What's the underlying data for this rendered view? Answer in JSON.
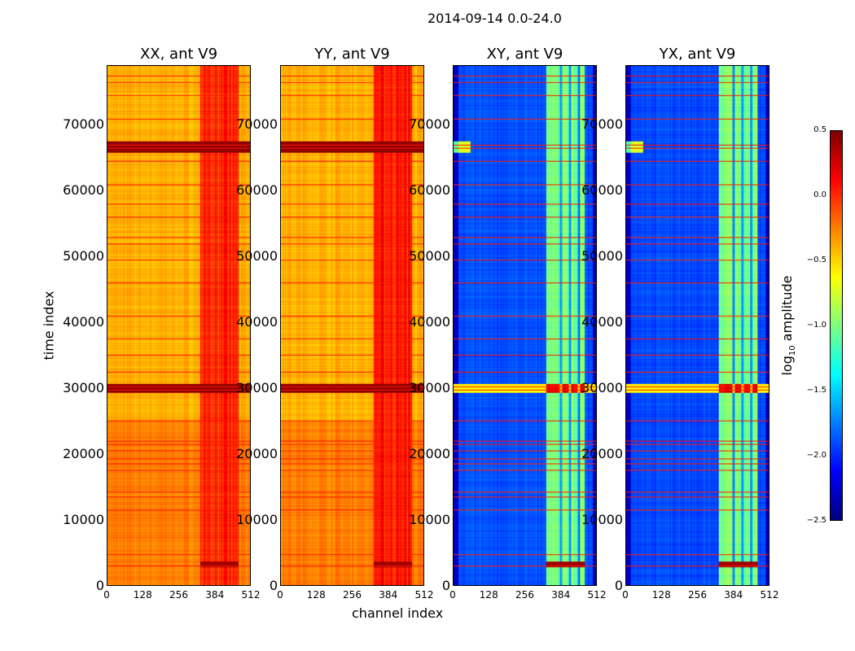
{
  "chart_data": {
    "type": "heatmap",
    "suptitle": "2014-09-14 0.0-24.0",
    "xlabel": "channel index",
    "ylabel": "time index",
    "xlim": [
      0,
      512
    ],
    "ylim": [
      0,
      79000
    ],
    "xticks": [
      "0",
      "128",
      "256",
      "384",
      "512"
    ],
    "yticks": [
      "0",
      "10000",
      "20000",
      "30000",
      "40000",
      "50000",
      "60000",
      "70000"
    ],
    "ytick_values": [
      0,
      10000,
      20000,
      30000,
      40000,
      50000,
      60000,
      70000
    ],
    "panels": [
      {
        "title": "XX, ant V9",
        "base": -0.4,
        "band_level": 0.0
      },
      {
        "title": "YY, ant V9",
        "base": -0.4,
        "band_level": 0.05
      },
      {
        "title": "XY, ant V9",
        "base": -1.9,
        "band_level": -1.0
      },
      {
        "title": "YX, ant V9",
        "base": -1.9,
        "band_level": -1.0
      }
    ],
    "band_channels": [
      330,
      470
    ],
    "flagged_time_rows": [
      3000,
      4700,
      11500,
      13500,
      14200,
      17500,
      18500,
      19200,
      20500,
      21500,
      22000,
      25000,
      29800,
      30300,
      32500,
      35000,
      37500,
      41000,
      46000,
      49500,
      52000,
      53000,
      56000,
      58000,
      61000,
      64500,
      66500,
      67000,
      71000,
      74500,
      76500,
      77500
    ],
    "colorbar": {
      "label": "log10 amplitude",
      "range": [
        -2.5,
        0.5
      ],
      "ticks": [
        "0.5",
        "0.0",
        "−0.5",
        "−1.0",
        "−1.5",
        "−2.0",
        "−2.5"
      ],
      "tick_values": [
        0.5,
        0.0,
        -0.5,
        -1.0,
        -1.5,
        -2.0,
        -2.5
      ],
      "colormap": "jet"
    }
  }
}
